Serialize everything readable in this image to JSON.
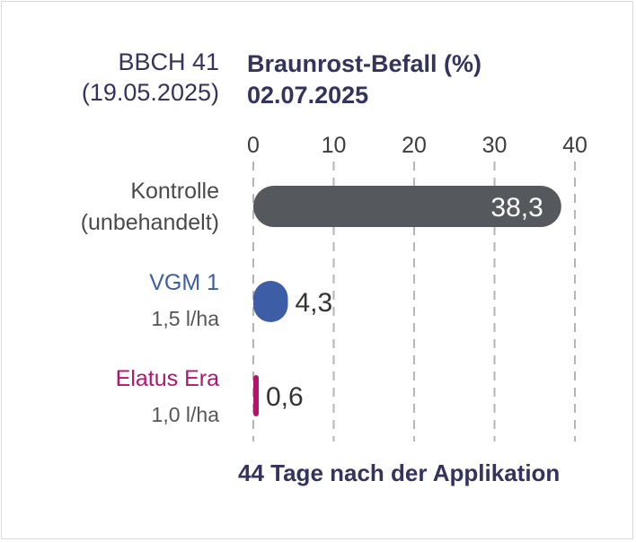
{
  "header": {
    "stage_line1": "BBCH 41",
    "stage_line2": "(19.05.2025)",
    "title_line1": "Braunrost-Befall (%)",
    "title_line2": "02.07.2025"
  },
  "footer": {
    "text": "44 Tage nach der Applikation"
  },
  "chart_data": {
    "type": "bar",
    "orientation": "horizontal",
    "title": "Braunrost-Befall (%) 02.07.2025",
    "xlabel": "44 Tage nach der Applikation",
    "xlim": [
      0,
      40
    ],
    "xticks": [
      0,
      10,
      20,
      30,
      40
    ],
    "grid": "vertical dashed",
    "categories": [
      {
        "name": "Kontrolle",
        "sub": "(unbehandelt)",
        "value": 38.3,
        "label": "38,3",
        "color": "#55585c",
        "label_color": "#ffffff",
        "name_color": "#4a4a4a",
        "sub_color": "#4a4a4a"
      },
      {
        "name": "VGM 1",
        "sub": "1,5 l/ha",
        "value": 4.3,
        "label": "4,3",
        "color": "#3d5ea6",
        "label_color": "#333333",
        "name_color": "#3d5ea6",
        "sub_color": "#555555"
      },
      {
        "name": "Elatus Era",
        "sub": "1,0 l/ha",
        "value": 0.6,
        "label": "0,6",
        "color": "#b5146e",
        "label_color": "#333333",
        "name_color": "#b5146e",
        "sub_color": "#555555"
      }
    ]
  }
}
